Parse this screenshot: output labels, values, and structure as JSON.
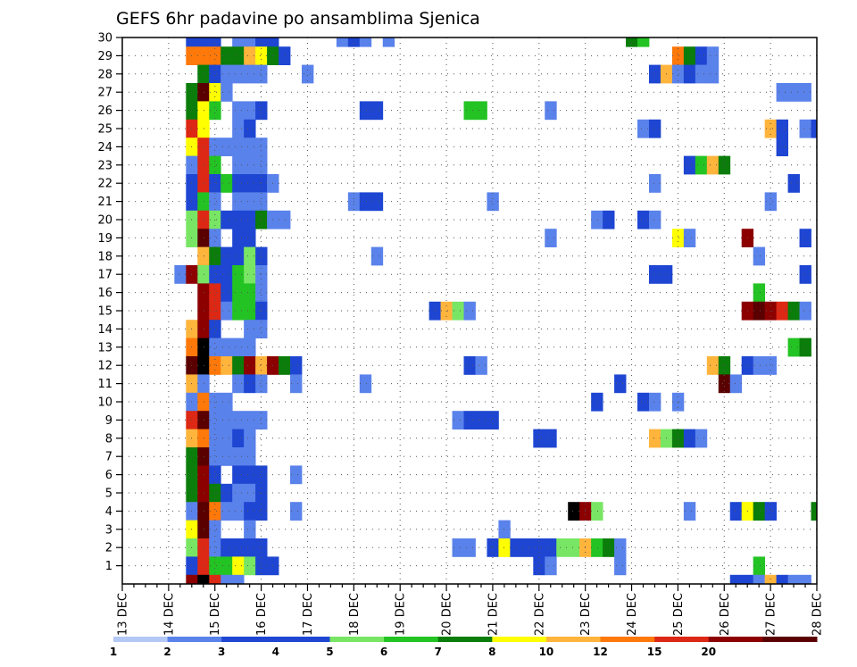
{
  "chart_data": {
    "type": "heatmap",
    "title": "GEFS 6hr padavine po ansamblima Sjenica",
    "x_tick_labels": [
      "13 DEC",
      "14 DEC",
      "15 DEC",
      "16 DEC",
      "17 DEC",
      "18 DEC",
      "19 DEC",
      "20 DEC",
      "21 DEC",
      "22 DEC",
      "23 DEC",
      "24 DEC",
      "25 DEC",
      "26 DEC",
      "27 DEC",
      "28 DEC"
    ],
    "x_step_hours": 6,
    "xlim_steps": [
      0,
      60
    ],
    "y_tick_labels": [
      "1",
      "2",
      "3",
      "4",
      "5",
      "6",
      "7",
      "8",
      "9",
      "10",
      "11",
      "12",
      "13",
      "14",
      "15",
      "16",
      "17",
      "18",
      "19",
      "20",
      "21",
      "22",
      "23",
      "24",
      "25",
      "26",
      "27",
      "28",
      "29",
      "30"
    ],
    "ylim_members": [
      0,
      30
    ],
    "grid": true,
    "colorbar": {
      "position": "bottom",
      "labels": [
        "1",
        "2",
        "3",
        "4",
        "5",
        "6",
        "7",
        "8",
        "10",
        "12",
        "15",
        "20"
      ],
      "colors": [
        "#b4c8f5",
        "#5a82eb",
        "#1e46d2",
        "#1e46d2",
        "#78e664",
        "#23c323",
        "#0a7d0a",
        "#ffff00",
        "#ffb43c",
        "#ff780a",
        "#dc2814",
        "#8c0000",
        "#5a0000"
      ]
    },
    "cells": [
      [
        30,
        6,
        3
      ],
      [
        30,
        7,
        3
      ],
      [
        30,
        8,
        2
      ],
      [
        30,
        10,
        1
      ],
      [
        30,
        11,
        1
      ],
      [
        30,
        12,
        2
      ],
      [
        30,
        13,
        2
      ],
      [
        30,
        19,
        1
      ],
      [
        30,
        20,
        2
      ],
      [
        30,
        21,
        1
      ],
      [
        30,
        23,
        1
      ],
      [
        30,
        44,
        6
      ],
      [
        30,
        45,
        5
      ],
      [
        29,
        6,
        9
      ],
      [
        29,
        7,
        9
      ],
      [
        29,
        8,
        9
      ],
      [
        29,
        9,
        6
      ],
      [
        29,
        10,
        6
      ],
      [
        29,
        11,
        8
      ],
      [
        29,
        12,
        7
      ],
      [
        29,
        13,
        6
      ],
      [
        29,
        14,
        3
      ],
      [
        29,
        48,
        9
      ],
      [
        29,
        49,
        6
      ],
      [
        29,
        50,
        2
      ],
      [
        29,
        51,
        1
      ],
      [
        28,
        7,
        6
      ],
      [
        28,
        8,
        2
      ],
      [
        28,
        9,
        1
      ],
      [
        28,
        10,
        1
      ],
      [
        28,
        11,
        1
      ],
      [
        28,
        12,
        1
      ],
      [
        28,
        16,
        1
      ],
      [
        28,
        46,
        3
      ],
      [
        28,
        47,
        8
      ],
      [
        28,
        48,
        1
      ],
      [
        28,
        49,
        2
      ],
      [
        28,
        50,
        1
      ],
      [
        28,
        51,
        1
      ],
      [
        27,
        6,
        6
      ],
      [
        27,
        7,
        12
      ],
      [
        27,
        8,
        7
      ],
      [
        27,
        9,
        1
      ],
      [
        27,
        57,
        1
      ],
      [
        27,
        58,
        1
      ],
      [
        27,
        59,
        1
      ],
      [
        26,
        6,
        6
      ],
      [
        26,
        7,
        7
      ],
      [
        26,
        8,
        5
      ],
      [
        26,
        10,
        1
      ],
      [
        26,
        11,
        1
      ],
      [
        26,
        12,
        2
      ],
      [
        26,
        21,
        3
      ],
      [
        26,
        22,
        2
      ],
      [
        26,
        30,
        5
      ],
      [
        26,
        31,
        5
      ],
      [
        26,
        37,
        1
      ],
      [
        25,
        6,
        10
      ],
      [
        25,
        7,
        7
      ],
      [
        25,
        10,
        1
      ],
      [
        25,
        11,
        2
      ],
      [
        25,
        45,
        1
      ],
      [
        25,
        46,
        2
      ],
      [
        25,
        56,
        8
      ],
      [
        25,
        57,
        2
      ],
      [
        25,
        59,
        1
      ],
      [
        25,
        60,
        2
      ],
      [
        24,
        6,
        7
      ],
      [
        24,
        7,
        10
      ],
      [
        24,
        8,
        1
      ],
      [
        24,
        9,
        1
      ],
      [
        24,
        10,
        1
      ],
      [
        24,
        11,
        1
      ],
      [
        24,
        12,
        1
      ],
      [
        24,
        57,
        3
      ],
      [
        23,
        6,
        1
      ],
      [
        23,
        7,
        10
      ],
      [
        23,
        8,
        5
      ],
      [
        23,
        10,
        1
      ],
      [
        23,
        11,
        1
      ],
      [
        23,
        12,
        1
      ],
      [
        23,
        49,
        2
      ],
      [
        23,
        50,
        5
      ],
      [
        23,
        51,
        8
      ],
      [
        23,
        52,
        6
      ],
      [
        22,
        6,
        3
      ],
      [
        22,
        7,
        10
      ],
      [
        22,
        8,
        2
      ],
      [
        22,
        9,
        5
      ],
      [
        22,
        10,
        3
      ],
      [
        22,
        11,
        3
      ],
      [
        22,
        12,
        2
      ],
      [
        22,
        13,
        1
      ],
      [
        22,
        46,
        1
      ],
      [
        22,
        58,
        2
      ],
      [
        21,
        6,
        2
      ],
      [
        21,
        7,
        5
      ],
      [
        21,
        8,
        1
      ],
      [
        21,
        10,
        1
      ],
      [
        21,
        11,
        1
      ],
      [
        21,
        12,
        1
      ],
      [
        21,
        20,
        1
      ],
      [
        21,
        21,
        2
      ],
      [
        21,
        22,
        2
      ],
      [
        21,
        32,
        1
      ],
      [
        21,
        56,
        1
      ],
      [
        20,
        6,
        4
      ],
      [
        20,
        7,
        10
      ],
      [
        20,
        8,
        4
      ],
      [
        20,
        9,
        2
      ],
      [
        20,
        10,
        2
      ],
      [
        20,
        11,
        2
      ],
      [
        20,
        12,
        6
      ],
      [
        20,
        13,
        1
      ],
      [
        20,
        14,
        1
      ],
      [
        20,
        41,
        1
      ],
      [
        20,
        42,
        3
      ],
      [
        20,
        45,
        3
      ],
      [
        20,
        46,
        1
      ],
      [
        19,
        6,
        4
      ],
      [
        19,
        7,
        12
      ],
      [
        19,
        8,
        1
      ],
      [
        19,
        10,
        2
      ],
      [
        19,
        11,
        3
      ],
      [
        19,
        37,
        1
      ],
      [
        19,
        48,
        7
      ],
      [
        19,
        49,
        1
      ],
      [
        19,
        54,
        11
      ],
      [
        19,
        59,
        3
      ],
      [
        18,
        7,
        8
      ],
      [
        18,
        8,
        6
      ],
      [
        18,
        9,
        3
      ],
      [
        18,
        10,
        3
      ],
      [
        18,
        11,
        4
      ],
      [
        18,
        12,
        2
      ],
      [
        18,
        22,
        1
      ],
      [
        18,
        55,
        1
      ],
      [
        17,
        5,
        1
      ],
      [
        17,
        6,
        11
      ],
      [
        17,
        7,
        4
      ],
      [
        17,
        8,
        2
      ],
      [
        17,
        9,
        3
      ],
      [
        17,
        10,
        5
      ],
      [
        17,
        11,
        4
      ],
      [
        17,
        12,
        1
      ],
      [
        17,
        46,
        3
      ],
      [
        17,
        47,
        2
      ],
      [
        17,
        59,
        3
      ],
      [
        16,
        7,
        11
      ],
      [
        16,
        8,
        10
      ],
      [
        16,
        9,
        2
      ],
      [
        16,
        10,
        5
      ],
      [
        16,
        11,
        5
      ],
      [
        16,
        12,
        1
      ],
      [
        16,
        55,
        5
      ],
      [
        15,
        7,
        11
      ],
      [
        15,
        8,
        10
      ],
      [
        15,
        9,
        1
      ],
      [
        15,
        10,
        5
      ],
      [
        15,
        11,
        5
      ],
      [
        15,
        12,
        2
      ],
      [
        15,
        27,
        3
      ],
      [
        15,
        28,
        8
      ],
      [
        15,
        29,
        4
      ],
      [
        15,
        30,
        1
      ],
      [
        15,
        54,
        11
      ],
      [
        15,
        55,
        12
      ],
      [
        15,
        56,
        11
      ],
      [
        15,
        57,
        10
      ],
      [
        15,
        58,
        6
      ],
      [
        15,
        59,
        1
      ],
      [
        14,
        6,
        8
      ],
      [
        14,
        7,
        11
      ],
      [
        14,
        8,
        3
      ],
      [
        14,
        11,
        1
      ],
      [
        14,
        12,
        1
      ],
      [
        13,
        6,
        9
      ],
      [
        13,
        7,
        13
      ],
      [
        13,
        8,
        1
      ],
      [
        13,
        9,
        1
      ],
      [
        13,
        10,
        1
      ],
      [
        13,
        11,
        1
      ],
      [
        13,
        58,
        5
      ],
      [
        13,
        59,
        6
      ],
      [
        12,
        6,
        12
      ],
      [
        12,
        7,
        13
      ],
      [
        12,
        8,
        9
      ],
      [
        12,
        9,
        8
      ],
      [
        12,
        10,
        6
      ],
      [
        12,
        11,
        11
      ],
      [
        12,
        12,
        8
      ],
      [
        12,
        13,
        11
      ],
      [
        12,
        14,
        6
      ],
      [
        12,
        15,
        3
      ],
      [
        12,
        30,
        2
      ],
      [
        12,
        31,
        1
      ],
      [
        12,
        51,
        8
      ],
      [
        12,
        52,
        6
      ],
      [
        12,
        54,
        2
      ],
      [
        12,
        55,
        1
      ],
      [
        12,
        56,
        1
      ],
      [
        11,
        6,
        8
      ],
      [
        11,
        7,
        1
      ],
      [
        11,
        10,
        1
      ],
      [
        11,
        11,
        2
      ],
      [
        11,
        12,
        1
      ],
      [
        11,
        15,
        1
      ],
      [
        11,
        21,
        1
      ],
      [
        11,
        43,
        2
      ],
      [
        11,
        52,
        12
      ],
      [
        11,
        53,
        1
      ],
      [
        10,
        6,
        1
      ],
      [
        10,
        7,
        9
      ],
      [
        10,
        8,
        1
      ],
      [
        10,
        9,
        1
      ],
      [
        10,
        41,
        2
      ],
      [
        10,
        45,
        2
      ],
      [
        10,
        46,
        1
      ],
      [
        10,
        48,
        1
      ],
      [
        9,
        6,
        10
      ],
      [
        9,
        7,
        12
      ],
      [
        9,
        8,
        1
      ],
      [
        9,
        9,
        1
      ],
      [
        9,
        10,
        1
      ],
      [
        9,
        11,
        1
      ],
      [
        9,
        12,
        1
      ],
      [
        9,
        29,
        1
      ],
      [
        9,
        30,
        3
      ],
      [
        9,
        31,
        3
      ],
      [
        9,
        32,
        3
      ],
      [
        8,
        6,
        8
      ],
      [
        8,
        7,
        9
      ],
      [
        8,
        8,
        1
      ],
      [
        8,
        9,
        1
      ],
      [
        8,
        10,
        2
      ],
      [
        8,
        11,
        1
      ],
      [
        8,
        36,
        3
      ],
      [
        8,
        37,
        3
      ],
      [
        8,
        46,
        8
      ],
      [
        8,
        47,
        4
      ],
      [
        8,
        48,
        6
      ],
      [
        8,
        49,
        3
      ],
      [
        8,
        50,
        1
      ],
      [
        7,
        6,
        6
      ],
      [
        7,
        7,
        12
      ],
      [
        7,
        8,
        1
      ],
      [
        7,
        9,
        1
      ],
      [
        7,
        10,
        1
      ],
      [
        7,
        11,
        1
      ],
      [
        6,
        6,
        6
      ],
      [
        6,
        7,
        11
      ],
      [
        6,
        8,
        3
      ],
      [
        6,
        10,
        2
      ],
      [
        6,
        11,
        3
      ],
      [
        6,
        12,
        3
      ],
      [
        6,
        15,
        1
      ],
      [
        5,
        6,
        6
      ],
      [
        5,
        7,
        11
      ],
      [
        5,
        8,
        6
      ],
      [
        5,
        9,
        3
      ],
      [
        5,
        10,
        1
      ],
      [
        5,
        11,
        1
      ],
      [
        5,
        12,
        2
      ],
      [
        4,
        6,
        1
      ],
      [
        4,
        7,
        12
      ],
      [
        4,
        8,
        9
      ],
      [
        4,
        9,
        1
      ],
      [
        4,
        10,
        1
      ],
      [
        4,
        11,
        2
      ],
      [
        4,
        12,
        2
      ],
      [
        4,
        15,
        1
      ],
      [
        4,
        39,
        13
      ],
      [
        4,
        40,
        11
      ],
      [
        4,
        41,
        4
      ],
      [
        4,
        49,
        1
      ],
      [
        4,
        53,
        3
      ],
      [
        4,
        54,
        7
      ],
      [
        4,
        55,
        6
      ],
      [
        4,
        56,
        3
      ],
      [
        4,
        60,
        6
      ],
      [
        3,
        6,
        7
      ],
      [
        3,
        7,
        12
      ],
      [
        3,
        8,
        1
      ],
      [
        3,
        11,
        1
      ],
      [
        3,
        33,
        1
      ],
      [
        2,
        6,
        4
      ],
      [
        2,
        7,
        10
      ],
      [
        2,
        8,
        1
      ],
      [
        2,
        9,
        2
      ],
      [
        2,
        10,
        2
      ],
      [
        2,
        11,
        3
      ],
      [
        2,
        12,
        3
      ],
      [
        2,
        29,
        1
      ],
      [
        2,
        30,
        1
      ],
      [
        2,
        32,
        3
      ],
      [
        2,
        33,
        7
      ],
      [
        2,
        34,
        2
      ],
      [
        2,
        35,
        2
      ],
      [
        2,
        36,
        2
      ],
      [
        2,
        37,
        2
      ],
      [
        2,
        38,
        4
      ],
      [
        2,
        39,
        4
      ],
      [
        2,
        40,
        8
      ],
      [
        2,
        41,
        5
      ],
      [
        2,
        42,
        6
      ],
      [
        2,
        43,
        1
      ],
      [
        1,
        6,
        2
      ],
      [
        1,
        7,
        10
      ],
      [
        1,
        8,
        5
      ],
      [
        1,
        9,
        5
      ],
      [
        1,
        10,
        7
      ],
      [
        1,
        11,
        4
      ],
      [
        1,
        12,
        2
      ],
      [
        1,
        13,
        2
      ],
      [
        1,
        36,
        2
      ],
      [
        1,
        37,
        1
      ],
      [
        1,
        43,
        1
      ],
      [
        1,
        55,
        5
      ],
      [
        0,
        6,
        11
      ],
      [
        0,
        7,
        13
      ],
      [
        0,
        8,
        10
      ],
      [
        0,
        9,
        1
      ],
      [
        0,
        10,
        1
      ],
      [
        0,
        53,
        2
      ],
      [
        0,
        54,
        2
      ],
      [
        0,
        55,
        1
      ],
      [
        0,
        56,
        8
      ],
      [
        0,
        57,
        2
      ],
      [
        0,
        58,
        1
      ],
      [
        0,
        59,
        1
      ]
    ]
  }
}
